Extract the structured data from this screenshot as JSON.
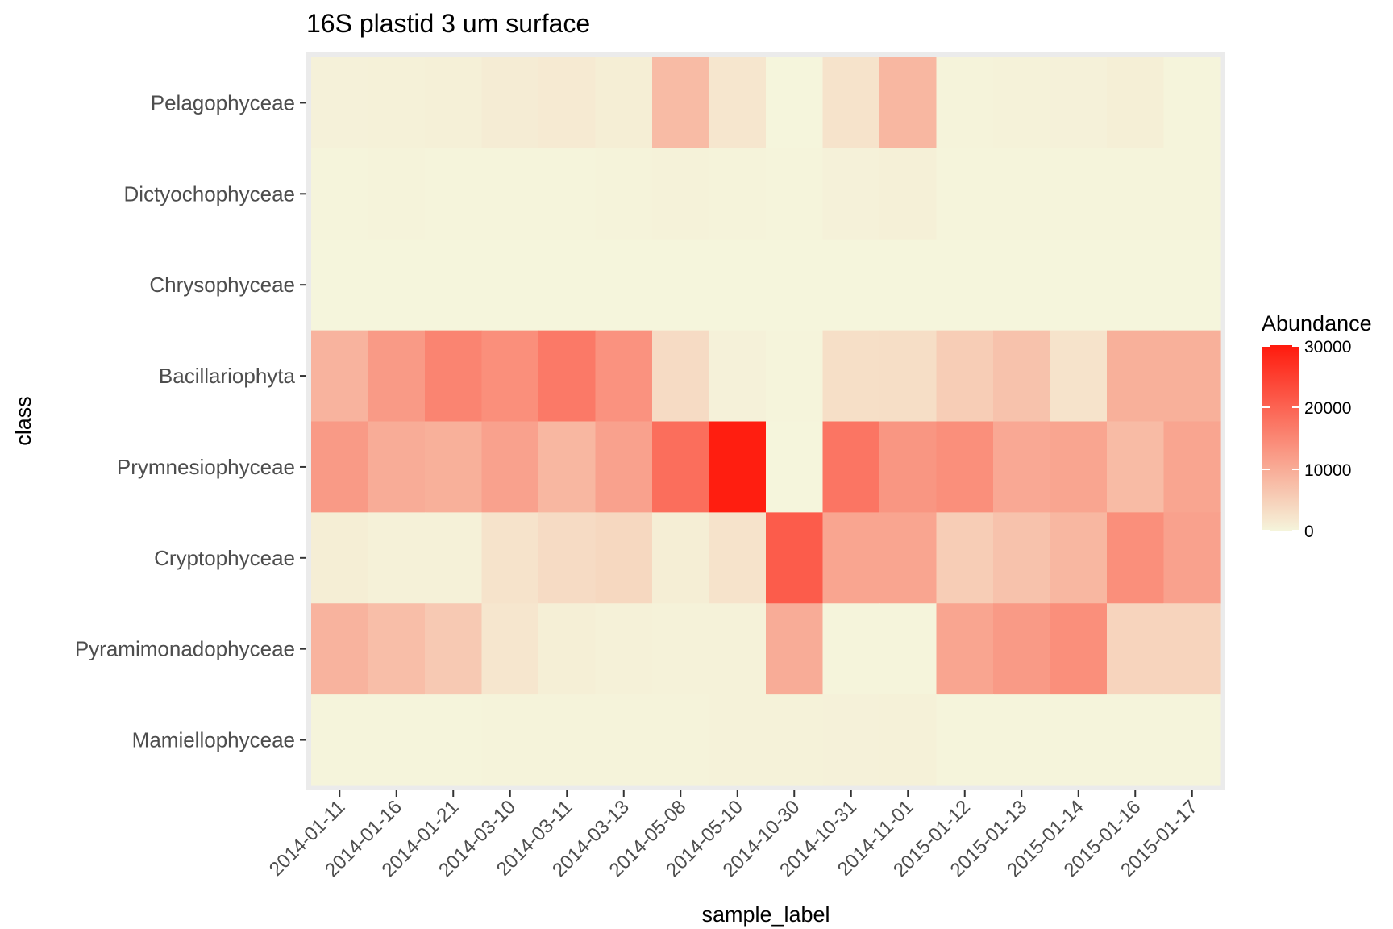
{
  "chart_data": {
    "type": "heatmap",
    "title": "16S plastid 3 um surface",
    "xlabel": "sample_label",
    "ylabel": "class",
    "x": [
      "2014-01-11",
      "2014-01-16",
      "2014-01-21",
      "2014-03-10",
      "2014-03-11",
      "2014-03-13",
      "2014-05-08",
      "2014-05-10",
      "2014-10-30",
      "2014-10-31",
      "2014-11-01",
      "2015-01-12",
      "2015-01-13",
      "2015-01-14",
      "2015-01-16",
      "2015-01-17"
    ],
    "y": [
      "Pelagophyceae",
      "Dictyochophyceae",
      "Chrysophyceae",
      "Bacillariophyta",
      "Prymnesiophyceae",
      "Cryptophyceae",
      "Pyramimonadophyceae",
      "Mamiellophyceae"
    ],
    "values": [
      [
        500,
        600,
        700,
        1200,
        1500,
        1000,
        8000,
        2000,
        0,
        2500,
        8500,
        300,
        400,
        500,
        800,
        200
      ],
      [
        200,
        300,
        200,
        200,
        200,
        300,
        400,
        300,
        200,
        500,
        700,
        200,
        100,
        100,
        100,
        100
      ],
      [
        0,
        0,
        0,
        0,
        0,
        0,
        0,
        0,
        0,
        0,
        0,
        0,
        0,
        0,
        0,
        0
      ],
      [
        9000,
        12500,
        15500,
        14000,
        17000,
        13500,
        3500,
        500,
        200,
        3000,
        3200,
        5500,
        7000,
        2500,
        9500,
        9500
      ],
      [
        12500,
        10000,
        9500,
        11500,
        8500,
        11500,
        18500,
        29500,
        0,
        17500,
        13000,
        14000,
        10500,
        11000,
        8000,
        11000
      ],
      [
        1000,
        600,
        600,
        2500,
        3500,
        4000,
        1000,
        2500,
        21000,
        11000,
        11000,
        5500,
        7000,
        8500,
        14000,
        11500
      ],
      [
        9000,
        7500,
        6000,
        2000,
        800,
        600,
        400,
        400,
        10000,
        200,
        200,
        11000,
        12500,
        14000,
        4500,
        4500
      ],
      [
        200,
        200,
        200,
        300,
        300,
        300,
        300,
        400,
        400,
        500,
        600,
        100,
        100,
        100,
        100,
        100
      ]
    ],
    "legend": {
      "title": "Abundance",
      "position": "right",
      "ticks": [
        0,
        10000,
        20000,
        30000
      ],
      "range": [
        0,
        30000
      ],
      "low_color": "#f5f5dc",
      "high_color": "#ff1a0d"
    },
    "panel_background": "#ebebeb",
    "grid": true
  }
}
